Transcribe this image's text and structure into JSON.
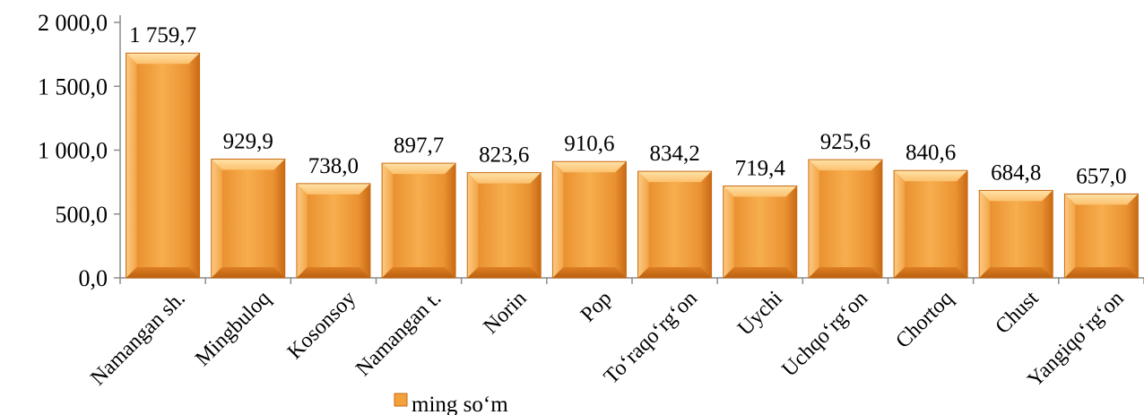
{
  "chart_data": {
    "type": "bar",
    "title": "",
    "xlabel": "",
    "ylabel": "",
    "categories": [
      "Namangan sh.",
      "Mingbuloq",
      "Kosonsoy",
      "Namangan t.",
      "Norin",
      "Pop",
      "To‘raqo‘rg‘on",
      "Uychi",
      "Uchqo‘rg‘on",
      "Chortoq",
      "Chust",
      "Yangiqo‘rg‘on"
    ],
    "series": [
      {
        "name": "ming so‘m",
        "values": [
          1759.7,
          929.9,
          738.0,
          897.7,
          823.6,
          910.6,
          834.2,
          719.4,
          925.6,
          840.6,
          684.8,
          657.0
        ],
        "labels": [
          "1 759,7",
          "929,9",
          "738,0",
          "897,7",
          "823,6",
          "910,6",
          "834,2",
          "719,4",
          "925,6",
          "840,6",
          "684,8",
          "657,0"
        ]
      }
    ],
    "ylim": [
      0,
      2000
    ],
    "yticks": [
      0,
      500,
      1000,
      1500,
      2000
    ],
    "ytick_labels": [
      "0,0",
      "500,0",
      "1 000,0",
      "1 500,0",
      "2 000,0"
    ],
    "grid": false,
    "legend_position": "bottom",
    "bar_color": "#F4A13C",
    "bar_color_light": "#FDD08A",
    "bar_color_dark": "#D9791B"
  }
}
